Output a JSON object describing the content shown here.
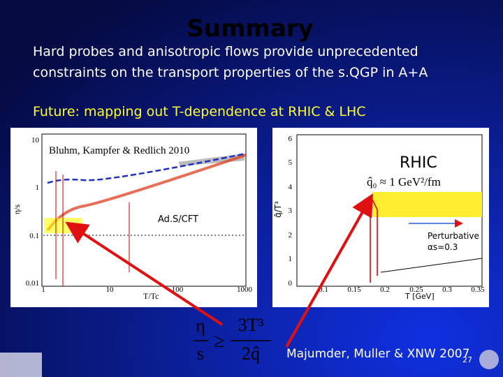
{
  "header": {
    "title": "Summary",
    "lines": [
      "Hard probes and anisotropic flows provide unprecedented",
      "constraints on the transport properties of the  s.QGP in A+A"
    ],
    "future": "Future: mapping out T-dependence  at  RHIC & LHC"
  },
  "left_plot": {
    "reference": "Bluhm, Kampfer & Redlich 2010",
    "ads": "Ad.S/CFT",
    "ylabel": "η/s",
    "xlabel": "T/Tc",
    "yticks": [
      "0.01",
      "0.1",
      "1",
      "10"
    ],
    "xticks": [
      "1",
      "10",
      "100",
      "1000"
    ]
  },
  "right_plot": {
    "label": "RHIC",
    "formula": "q̂₀ ≈ 1 GeV²/fm",
    "pert": "Perturbative",
    "alpha": "αs=0.3",
    "ylabel": "q̂/T³",
    "xlabel": "T [GeV]",
    "yticks": [
      "0",
      "1",
      "2",
      "3",
      "4",
      "5",
      "6"
    ],
    "xticks": [
      "0.1",
      "0.15",
      "0.2",
      "0.25",
      "0.3",
      "0.35"
    ]
  },
  "formula": {
    "eta": "η",
    "s": "s",
    "geq": "≥",
    "num": "3T³",
    "den": "2q̂"
  },
  "citation": "Majumder, Muller & XNW 2007",
  "page_number": "27"
}
